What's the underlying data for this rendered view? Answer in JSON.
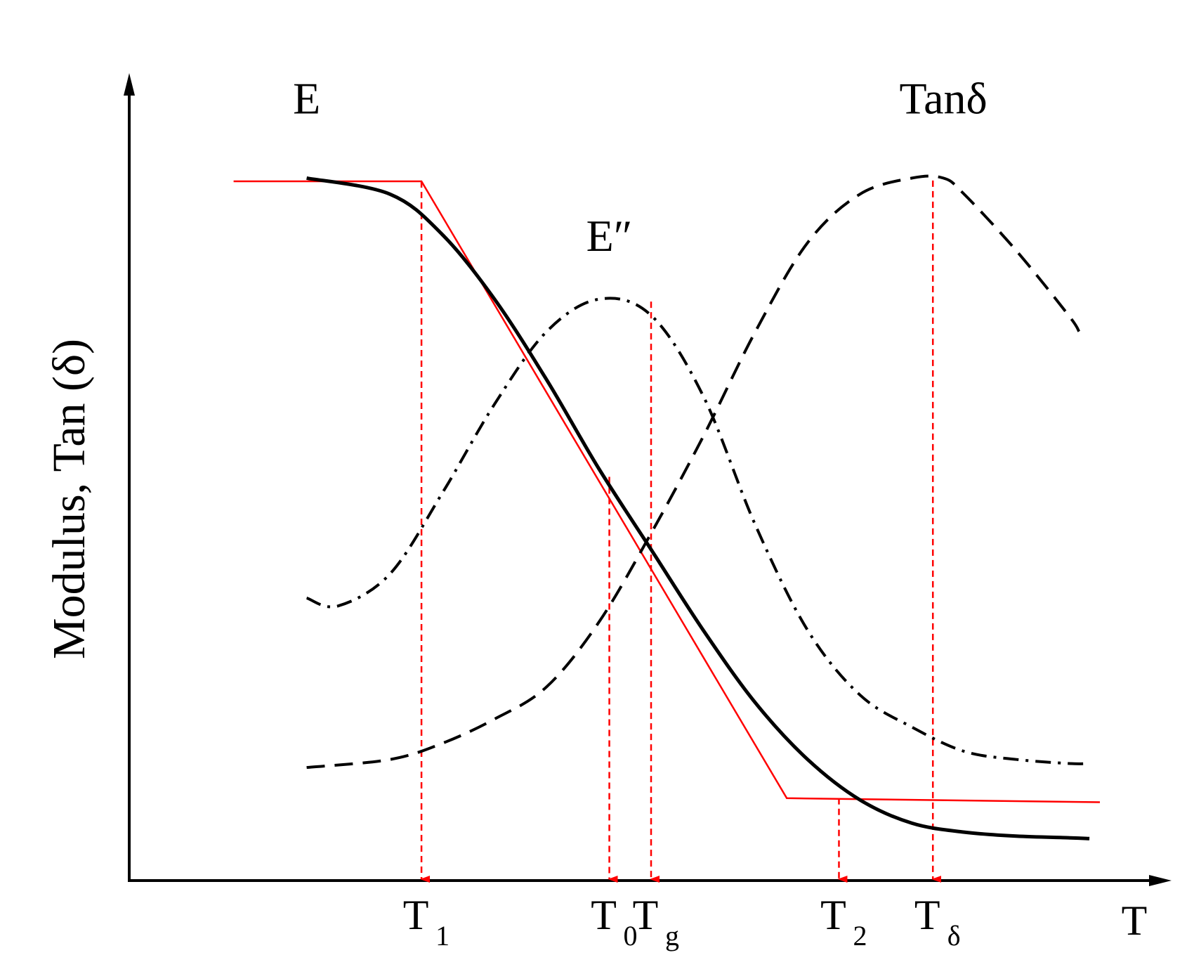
{
  "chart_data": {
    "type": "line",
    "title": "",
    "xlabel": "T",
    "ylabel": "Modulus, Tan (δ)",
    "xlim": [
      0,
      1
    ],
    "ylim": [
      0,
      1
    ],
    "grid": false,
    "series": [
      {
        "name": "E",
        "style": "solid",
        "color": "#000000",
        "x": [
          0.17,
          0.25,
          0.3,
          0.35,
          0.4,
          0.45,
          0.5,
          0.55,
          0.6,
          0.65,
          0.7,
          0.75,
          0.8,
          0.85,
          0.9,
          0.92
        ],
        "y": [
          0.87,
          0.85,
          0.8,
          0.72,
          0.62,
          0.51,
          0.41,
          0.31,
          0.22,
          0.15,
          0.1,
          0.071,
          0.06,
          0.055,
          0.053,
          0.052
        ]
      },
      {
        "name": "E″",
        "style": "dash-dot",
        "color": "#000000",
        "x": [
          0.17,
          0.2,
          0.25,
          0.3,
          0.35,
          0.4,
          0.45,
          0.5,
          0.55,
          0.6,
          0.65,
          0.7,
          0.75,
          0.8,
          0.85,
          0.9,
          0.92
        ],
        "y": [
          0.35,
          0.34,
          0.38,
          0.48,
          0.59,
          0.68,
          0.72,
          0.7,
          0.6,
          0.44,
          0.31,
          0.23,
          0.19,
          0.16,
          0.15,
          0.145,
          0.145
        ]
      },
      {
        "name": "Tanδ",
        "style": "dash",
        "color": "#000000",
        "x": [
          0.17,
          0.25,
          0.3,
          0.35,
          0.4,
          0.45,
          0.5,
          0.55,
          0.6,
          0.65,
          0.7,
          0.75,
          0.78,
          0.8,
          0.85,
          0.9,
          0.91
        ],
        "y": [
          0.14,
          0.15,
          0.17,
          0.2,
          0.24,
          0.32,
          0.43,
          0.55,
          0.68,
          0.79,
          0.85,
          0.87,
          0.87,
          0.85,
          0.78,
          0.7,
          0.68
        ]
      }
    ],
    "tangent_lines": {
      "color": "#ff0000",
      "points": [
        [
          0.1,
          0.866
        ],
        [
          0.28,
          0.866
        ],
        [
          0.63,
          0.102
        ],
        [
          0.93,
          0.097
        ]
      ]
    },
    "markers": [
      {
        "label": "T",
        "sub": "1",
        "x": 0.28,
        "from_y": 0.866
      },
      {
        "label": "T",
        "sub": "0",
        "x": 0.46,
        "from_y": 0.5
      },
      {
        "label": "T",
        "sub": "g",
        "x": 0.5,
        "from_y": 0.717
      },
      {
        "label": "T",
        "sub": "2",
        "x": 0.68,
        "from_y": 0.102
      },
      {
        "label": "T",
        "sub": "δ",
        "x": 0.77,
        "from_y": 0.867
      }
    ],
    "curve_labels": [
      {
        "text": "E",
        "x": 0.17,
        "y": 0.95
      },
      {
        "text": "E″",
        "x": 0.46,
        "y": 0.78
      },
      {
        "text": "Tanδ",
        "x": 0.78,
        "y": 0.95
      }
    ]
  }
}
